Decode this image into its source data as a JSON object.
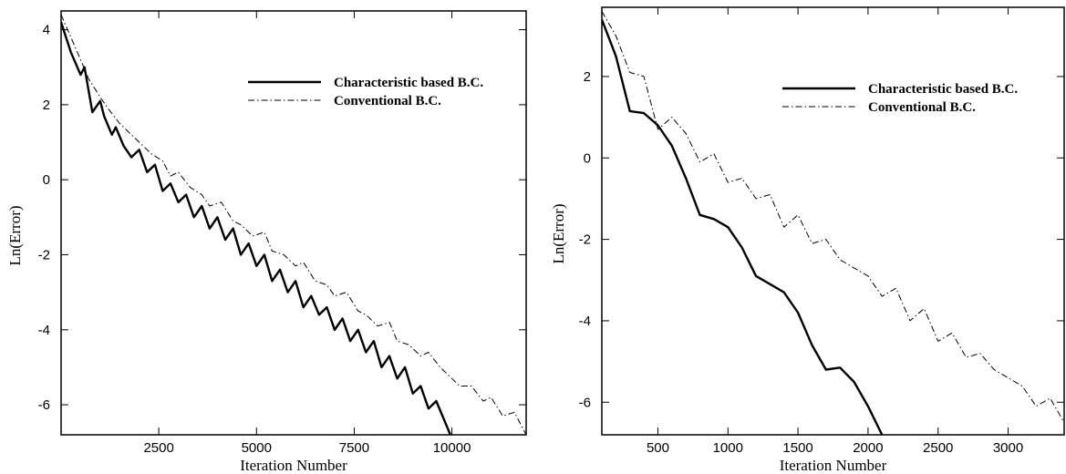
{
  "chart_data": [
    {
      "type": "line",
      "xlabel": "Iteration Number",
      "ylabel": "Ln(Error)",
      "xlim": [
        0,
        11900
      ],
      "ylim": [
        -6.8,
        4.5
      ],
      "xticks": [
        2500,
        5000,
        7500,
        10000
      ],
      "yticks": [
        4,
        2,
        0,
        -2,
        -4,
        -6
      ],
      "legend_position": "top-right",
      "series": [
        {
          "name": "Characteristic based B.C.",
          "style": "solid",
          "x": [
            0,
            250,
            500,
            600,
            800,
            1000,
            1100,
            1300,
            1400,
            1600,
            1800,
            2000,
            2200,
            2400,
            2600,
            2800,
            3000,
            3200,
            3400,
            3600,
            3800,
            4000,
            4200,
            4400,
            4600,
            4800,
            5000,
            5200,
            5400,
            5600,
            5800,
            6000,
            6200,
            6400,
            6600,
            6800,
            7000,
            7200,
            7400,
            7600,
            7800,
            8000,
            8200,
            8400,
            8600,
            8800,
            9000,
            9200,
            9400,
            9600,
            9800,
            10000
          ],
          "y": [
            4.2,
            3.4,
            2.8,
            3.0,
            1.8,
            2.1,
            1.7,
            1.2,
            1.4,
            0.9,
            0.6,
            0.8,
            0.2,
            0.4,
            -0.3,
            -0.1,
            -0.6,
            -0.4,
            -1.0,
            -0.7,
            -1.3,
            -1.0,
            -1.6,
            -1.3,
            -2.0,
            -1.7,
            -2.3,
            -2.0,
            -2.7,
            -2.4,
            -3.0,
            -2.7,
            -3.4,
            -3.1,
            -3.6,
            -3.4,
            -4.0,
            -3.7,
            -4.3,
            -4.0,
            -4.6,
            -4.3,
            -5.0,
            -4.7,
            -5.3,
            -5.0,
            -5.7,
            -5.5,
            -6.1,
            -5.9,
            -6.4,
            -6.9
          ]
        },
        {
          "name": "Conventional B.C.",
          "style": "dash-dot",
          "x": [
            0,
            500,
            700,
            1000,
            1200,
            1500,
            1800,
            2000,
            2300,
            2600,
            2800,
            3000,
            3300,
            3600,
            3800,
            4100,
            4400,
            4600,
            4900,
            5200,
            5400,
            5700,
            6000,
            6200,
            6500,
            6800,
            7000,
            7300,
            7600,
            7800,
            8100,
            8400,
            8600,
            8900,
            9200,
            9400,
            9700,
            10000,
            10200,
            10500,
            10800,
            11000,
            11300,
            11600,
            11900
          ],
          "y": [
            4.4,
            3.2,
            2.7,
            2.2,
            1.9,
            1.5,
            1.2,
            1.0,
            0.7,
            0.5,
            0.1,
            0.2,
            -0.2,
            -0.4,
            -0.7,
            -0.6,
            -1.1,
            -1.2,
            -1.5,
            -1.4,
            -1.9,
            -2.0,
            -2.3,
            -2.2,
            -2.7,
            -2.8,
            -3.1,
            -3.0,
            -3.5,
            -3.6,
            -3.9,
            -3.8,
            -4.3,
            -4.4,
            -4.7,
            -4.6,
            -5.0,
            -5.3,
            -5.5,
            -5.5,
            -5.9,
            -5.8,
            -6.3,
            -6.2,
            -6.8
          ]
        }
      ]
    },
    {
      "type": "line",
      "xlabel": "Iteration Number",
      "ylabel": "Ln(Error)",
      "xlim": [
        100,
        3400
      ],
      "ylim": [
        -6.8,
        3.7
      ],
      "xticks": [
        500,
        1000,
        1500,
        2000,
        2500,
        3000
      ],
      "yticks": [
        2,
        0,
        -2,
        -4,
        -6
      ],
      "legend_position": "top-right",
      "series": [
        {
          "name": "Characteristic based B.C.",
          "style": "solid",
          "x": [
            100,
            200,
            300,
            400,
            500,
            600,
            700,
            800,
            900,
            1000,
            1100,
            1200,
            1300,
            1400,
            1500,
            1600,
            1700,
            1800,
            1900,
            2000,
            2100
          ],
          "y": [
            3.4,
            2.5,
            1.15,
            1.1,
            0.8,
            0.3,
            -0.5,
            -1.4,
            -1.5,
            -1.7,
            -2.2,
            -2.9,
            -3.1,
            -3.3,
            -3.8,
            -4.6,
            -5.2,
            -5.15,
            -5.5,
            -6.1,
            -6.8
          ]
        },
        {
          "name": "Conventional B.C.",
          "style": "dash-dot",
          "x": [
            100,
            200,
            300,
            400,
            500,
            600,
            700,
            800,
            900,
            1000,
            1100,
            1200,
            1300,
            1400,
            1500,
            1600,
            1700,
            1800,
            1900,
            2000,
            2100,
            2200,
            2300,
            2400,
            2500,
            2600,
            2700,
            2800,
            2900,
            3000,
            3100,
            3200,
            3300,
            3400
          ],
          "y": [
            3.6,
            3.0,
            2.1,
            2.0,
            0.7,
            1.0,
            0.6,
            -0.1,
            0.1,
            -0.6,
            -0.5,
            -1.0,
            -0.9,
            -1.7,
            -1.4,
            -2.1,
            -2.0,
            -2.5,
            -2.7,
            -2.9,
            -3.4,
            -3.2,
            -4.0,
            -3.7,
            -4.5,
            -4.3,
            -4.9,
            -4.8,
            -5.2,
            -5.4,
            -5.6,
            -6.1,
            -5.9,
            -6.5
          ]
        }
      ]
    }
  ]
}
